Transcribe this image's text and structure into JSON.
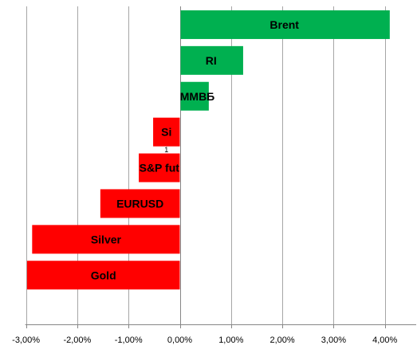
{
  "chart_data": {
    "type": "bar",
    "orientation": "horizontal",
    "title": "",
    "xlabel": "",
    "ylabel": "",
    "categories": [
      "Brent",
      "RI",
      "ММВБ",
      "Si",
      "S&P fut",
      "EURUSD",
      "Silver",
      "Gold"
    ],
    "values": [
      4.08,
      1.22,
      0.55,
      -0.52,
      -0.8,
      -1.55,
      -2.88,
      -2.98
    ],
    "unit": "%",
    "xlim": [
      -3.0,
      4.0
    ],
    "xticks": [
      -3,
      -2,
      -1,
      0,
      1,
      2,
      3,
      4
    ],
    "xtick_labels": [
      "-3,00%",
      "-2,00%",
      "-1,00%",
      "0,00%",
      "1,00%",
      "2,00%",
      "3,00%",
      "4,00%"
    ],
    "grid": "vertical",
    "legend": "none",
    "colors": {
      "positive": "#00b050",
      "negative": "#ff0000",
      "grid": "#a6a6a6",
      "axis": "#868686"
    },
    "annotations": [
      {
        "text": "1",
        "near": "Si"
      }
    ]
  }
}
